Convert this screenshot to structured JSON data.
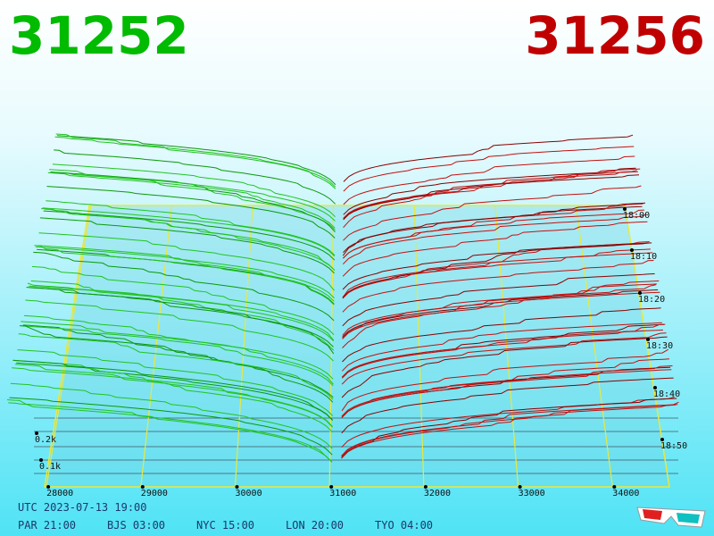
{
  "header": {
    "bid_price": "31252",
    "ask_price": "31256"
  },
  "price_axis": [
    "28000",
    "29000",
    "30000",
    "31000",
    "32000",
    "33000",
    "34000"
  ],
  "time_axis": [
    "18:00",
    "18:10",
    "18:20",
    "18:30",
    "18:40",
    "18:50"
  ],
  "depth_axis": [
    "0.2k",
    "0.1k"
  ],
  "footer": {
    "utc": "UTC 2023-07-13 19:00",
    "zones": [
      "PAR 21:00",
      "BJS 03:00",
      "NYC 15:00",
      "LON 20:00",
      "TYO 04:00"
    ]
  }
}
